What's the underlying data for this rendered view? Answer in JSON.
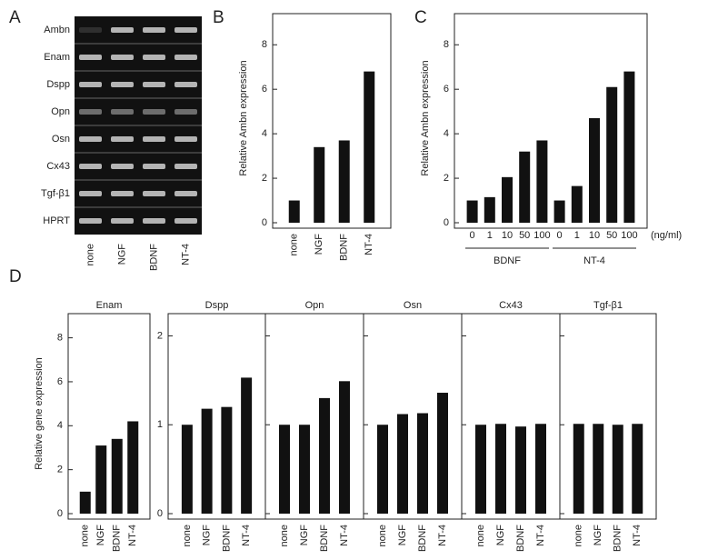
{
  "chart_data": [
    {
      "type": "gel",
      "panel": "A",
      "rows": [
        "Ambn",
        "Enam",
        "Dspp",
        "Opn",
        "Osn",
        "Cx43",
        "Tgf-β1",
        "HPRT"
      ],
      "categories": [
        "none",
        "NGF",
        "BDNF",
        "NT-4"
      ]
    },
    {
      "type": "bar",
      "panel": "B",
      "ylabel": "Relative Ambn expression",
      "categories": [
        "none",
        "NGF",
        "BDNF",
        "NT-4"
      ],
      "values": [
        1,
        3.4,
        3.7,
        6.8
      ],
      "ylim": [
        0,
        9.4
      ],
      "yticks": [
        0,
        2,
        4,
        6,
        8
      ],
      "color": "#111111",
      "rotate_labels": true
    },
    {
      "type": "bar",
      "panel": "C",
      "ylabel": "Relative Ambn expression",
      "categories": [
        "0",
        "1",
        "10",
        "50",
        "100",
        "0",
        "1",
        "10",
        "50",
        "100"
      ],
      "groups": [
        "BDNF",
        "NT-4"
      ],
      "unit": "(ng/ml)",
      "values": [
        1,
        1.15,
        2.05,
        3.2,
        3.7,
        1,
        1.65,
        4.7,
        6.1,
        6.8
      ],
      "ylim": [
        0,
        9.4
      ],
      "yticks": [
        0,
        2,
        4,
        6,
        8
      ],
      "color": "#111111",
      "rotate_labels": false
    },
    {
      "type": "bar",
      "panel": "D",
      "title": "Enam",
      "ylabel": "Relative gene expression",
      "categories": [
        "none",
        "NGF",
        "BDNF",
        "NT-4"
      ],
      "values": [
        1,
        3.1,
        3.4,
        4.2
      ],
      "ylim": [
        0,
        9.1
      ],
      "yticks": [
        0,
        2,
        4,
        6,
        8
      ],
      "color": "#111111",
      "rotate_labels": true
    },
    {
      "type": "bar",
      "title": "Dspp",
      "categories": [
        "none",
        "NGF",
        "BDNF",
        "NT-4"
      ],
      "values": [
        1,
        1.18,
        1.2,
        1.53
      ],
      "ylim": [
        0,
        2.25
      ],
      "yticks": [
        0,
        1,
        2
      ],
      "color": "#111111",
      "rotate_labels": true
    },
    {
      "type": "bar",
      "title": "Opn",
      "categories": [
        "none",
        "NGF",
        "BDNF",
        "NT-4"
      ],
      "values": [
        1,
        1,
        1.3,
        1.49
      ],
      "ylim": [
        0,
        2.25
      ],
      "yticks": [
        0,
        1,
        2
      ],
      "show_tick_labels": false,
      "color": "#111111",
      "rotate_labels": true
    },
    {
      "type": "bar",
      "title": "Osn",
      "categories": [
        "none",
        "NGF",
        "BDNF",
        "NT-4"
      ],
      "values": [
        1,
        1.12,
        1.13,
        1.36
      ],
      "ylim": [
        0,
        2.25
      ],
      "yticks": [
        0,
        1,
        2
      ],
      "show_tick_labels": false,
      "color": "#111111",
      "rotate_labels": true
    },
    {
      "type": "bar",
      "title": "Cx43",
      "categories": [
        "none",
        "NGF",
        "BDNF",
        "NT-4"
      ],
      "values": [
        1,
        1.01,
        0.98,
        1.01
      ],
      "ylim": [
        0,
        2.25
      ],
      "yticks": [
        0,
        1,
        2
      ],
      "show_tick_labels": false,
      "color": "#111111",
      "rotate_labels": true
    },
    {
      "type": "bar",
      "title": "Tgf-β1",
      "categories": [
        "none",
        "NGF",
        "BDNF",
        "NT-4"
      ],
      "values": [
        1.01,
        1.01,
        1,
        1.01
      ],
      "ylim": [
        0,
        2.25
      ],
      "yticks": [
        0,
        1,
        2
      ],
      "show_tick_labels": false,
      "color": "#111111",
      "rotate_labels": true
    }
  ]
}
